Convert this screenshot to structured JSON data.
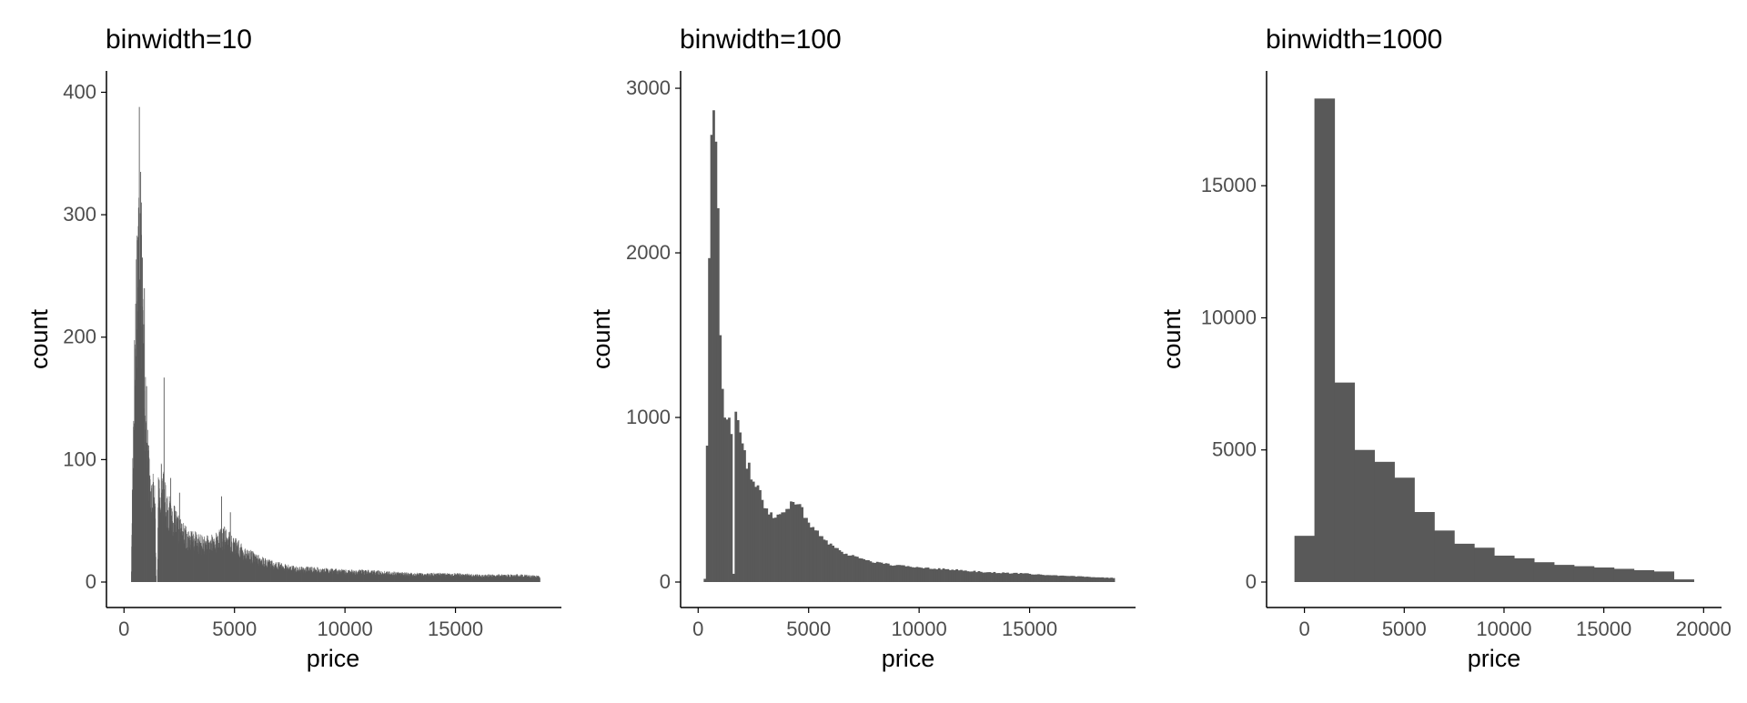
{
  "colors": {
    "bar": "#595959",
    "axis": "#000000",
    "tick_text": "#4d4d4d",
    "background": "#ffffff"
  },
  "chart_data": [
    {
      "type": "bar",
      "title": "binwidth=10",
      "xlabel": "price",
      "ylabel": "count",
      "binwidth": 10,
      "xlim": [
        -300,
        19300
      ],
      "ylim": [
        0,
        410
      ],
      "xticks": [
        0,
        5000,
        10000,
        15000
      ],
      "xtick_labels": [
        "0",
        "5000",
        "10000",
        "15000"
      ],
      "yticks": [
        0,
        100,
        200,
        300,
        400
      ],
      "ytick_labels": [
        "0",
        "100",
        "200",
        "300",
        "400"
      ],
      "grid": false,
      "legend": "none",
      "profile": {
        "x": [
          326,
          360,
          400,
          450,
          500,
          550,
          600,
          650,
          700,
          750,
          800,
          850,
          900,
          950,
          1000,
          1100,
          1200,
          1300,
          1400,
          1450,
          1500,
          1550,
          1600,
          1700,
          1800,
          1900,
          2000,
          2200,
          2400,
          2600,
          2800,
          3000,
          3300,
          3600,
          3900,
          4200,
          4500,
          4800,
          5100,
          5500,
          6000,
          6500,
          7000,
          7500,
          8000,
          8500,
          9000,
          9500,
          10000,
          11000,
          12000,
          13000,
          14000,
          15000,
          16000,
          17000,
          18000,
          18823
        ],
        "y": [
          10,
          60,
          110,
          150,
          190,
          230,
          260,
          270,
          290,
          260,
          230,
          200,
          170,
          140,
          115,
          90,
          75,
          70,
          62,
          0,
          0,
          75,
          72,
          80,
          70,
          62,
          56,
          52,
          44,
          40,
          36,
          34,
          32,
          30,
          30,
          33,
          36,
          33,
          28,
          23,
          18,
          15,
          13,
          11,
          10,
          10,
          9,
          9,
          8,
          8,
          7,
          6,
          6,
          6,
          5,
          5,
          5,
          4
        ]
      },
      "spikes": [
        {
          "x": 680,
          "y": 388
        },
        {
          "x": 740,
          "y": 335
        },
        {
          "x": 770,
          "y": 310
        },
        {
          "x": 820,
          "y": 265
        },
        {
          "x": 910,
          "y": 240
        },
        {
          "x": 1010,
          "y": 160
        },
        {
          "x": 1800,
          "y": 167
        },
        {
          "x": 2100,
          "y": 85
        },
        {
          "x": 2500,
          "y": 73
        },
        {
          "x": 4400,
          "y": 70
        },
        {
          "x": 4800,
          "y": 57
        }
      ]
    },
    {
      "type": "bar",
      "title": "binwidth=100",
      "xlabel": "price",
      "ylabel": "count",
      "binwidth": 100,
      "xlim": [
        -300,
        19300
      ],
      "ylim": [
        0,
        3050
      ],
      "xticks": [
        0,
        5000,
        10000,
        15000
      ],
      "xtick_labels": [
        "0",
        "5000",
        "10000",
        "15000"
      ],
      "yticks": [
        0,
        1000,
        2000,
        3000
      ],
      "ytick_labels": [
        "0",
        "1000",
        "2000",
        "3000"
      ],
      "grid": false,
      "legend": "none",
      "profile": {
        "x": [
          300,
          400,
          500,
          600,
          700,
          800,
          900,
          1000,
          1100,
          1200,
          1300,
          1400,
          1500,
          1600,
          1700,
          1800,
          1900,
          2000,
          2200,
          2400,
          2600,
          2800,
          3000,
          3200,
          3400,
          3600,
          3800,
          4000,
          4200,
          4400,
          4600,
          4800,
          5000,
          5500,
          6000,
          6500,
          7000,
          7500,
          8000,
          9000,
          10000,
          11000,
          12000,
          13000,
          14000,
          15000,
          16000,
          17000,
          18000,
          18800
        ],
        "y": [
          20,
          870,
          1930,
          2740,
          2880,
          2690,
          2400,
          1550,
          1150,
          1000,
          980,
          1010,
          850,
          50,
          1100,
          990,
          950,
          800,
          720,
          650,
          590,
          560,
          470,
          430,
          410,
          400,
          420,
          440,
          500,
          490,
          460,
          410,
          360,
          290,
          230,
          180,
          160,
          140,
          120,
          100,
          90,
          80,
          70,
          60,
          55,
          50,
          40,
          35,
          30,
          25
        ]
      },
      "spikes": []
    },
    {
      "type": "bar",
      "title": "binwidth=1000",
      "xlabel": "price",
      "ylabel": "count",
      "binwidth": 1000,
      "xlim": [
        -1350,
        20350
      ],
      "ylim": [
        0,
        19000
      ],
      "xticks": [
        0,
        5000,
        10000,
        15000,
        20000
      ],
      "xtick_labels": [
        "0",
        "5000",
        "10000",
        "15000",
        "20000"
      ],
      "yticks": [
        0,
        5000,
        10000,
        15000
      ],
      "ytick_labels": [
        "0",
        "5000",
        "10000",
        "15000"
      ],
      "grid": false,
      "legend": "none",
      "bins": {
        "x": [
          0,
          1000,
          2000,
          3000,
          4000,
          5000,
          6000,
          7000,
          8000,
          9000,
          10000,
          11000,
          12000,
          13000,
          14000,
          15000,
          16000,
          17000,
          18000,
          19000
        ],
        "y": [
          1750,
          18300,
          7550,
          5000,
          4550,
          3950,
          2650,
          1950,
          1450,
          1300,
          1000,
          900,
          750,
          650,
          600,
          550,
          500,
          450,
          400,
          100
        ]
      },
      "profile": null,
      "spikes": []
    }
  ]
}
